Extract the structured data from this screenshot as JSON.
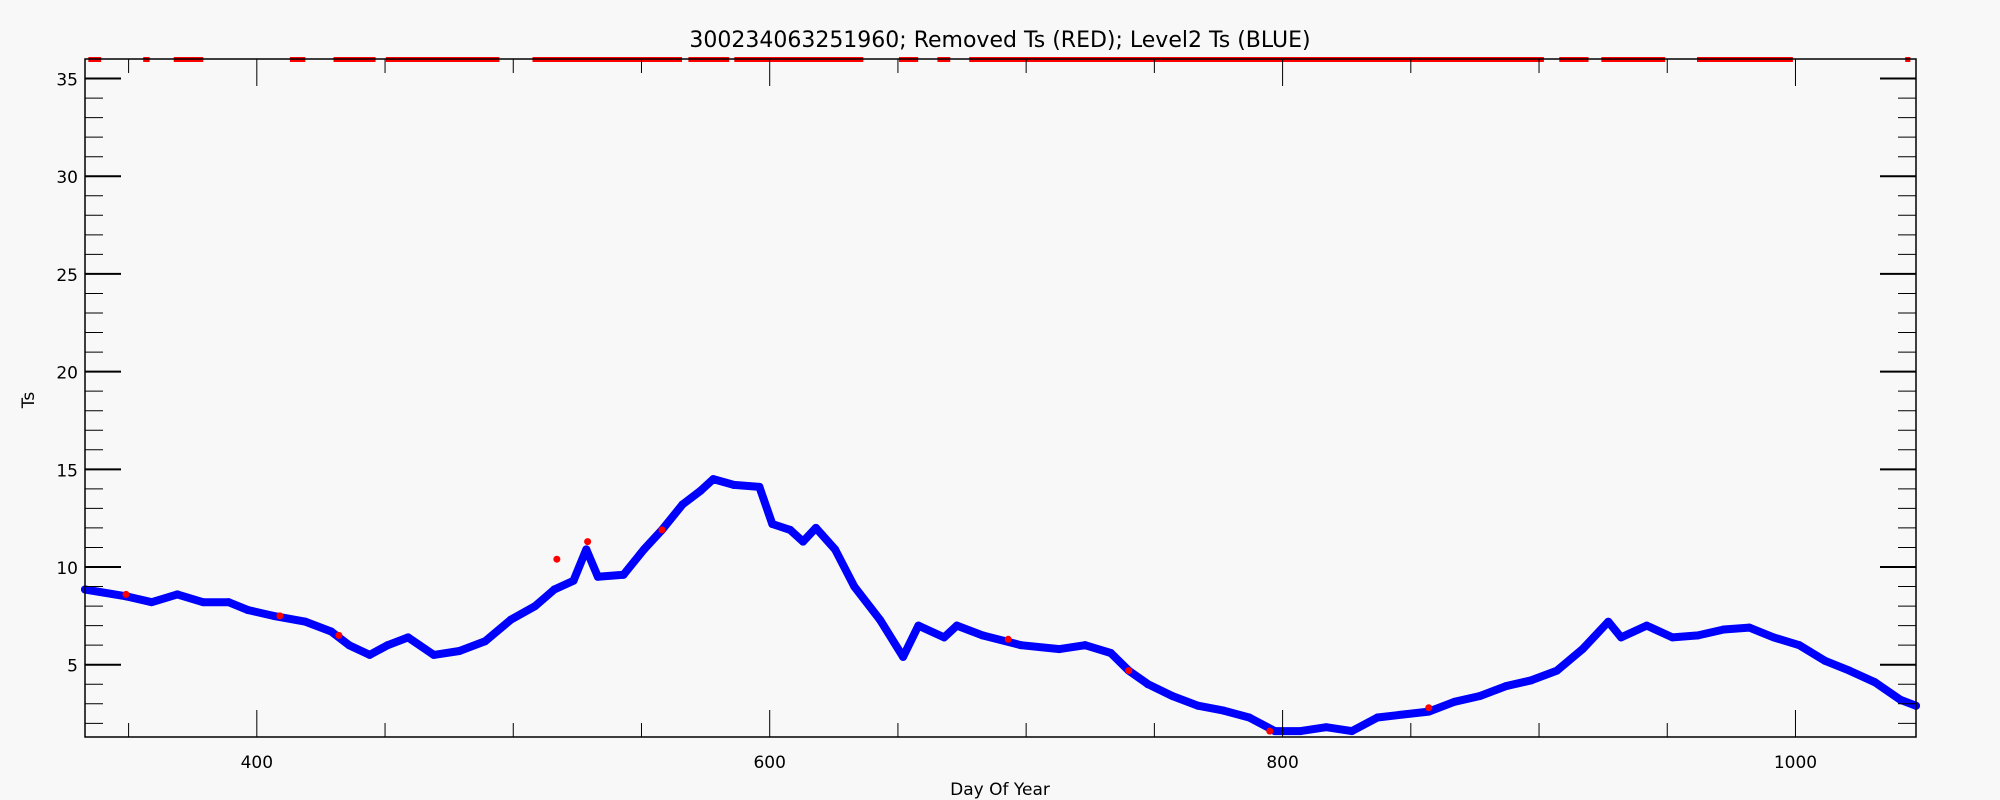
{
  "chart_data": {
    "type": "scatter",
    "title": "300234063251960; Removed Ts (RED); Level2 Ts (BLUE)",
    "xlabel": "Day Of Year",
    "ylabel": "Ts",
    "xlim": [
      333,
      1047
    ],
    "ylim": [
      1.3,
      36
    ],
    "xticks": [
      400,
      600,
      800,
      1000
    ],
    "xtick_labels": [
      "400",
      "600",
      "800",
      "1000"
    ],
    "x_minor_step": 50,
    "yticks": [
      5,
      10,
      15,
      20,
      25,
      30,
      35
    ],
    "ytick_labels": [
      "5",
      "10",
      "15",
      "20",
      "25",
      "30",
      "35"
    ],
    "y_minor_step": 1,
    "grid": false,
    "colors": {
      "level2": "#0000ff",
      "removed": "#ff0000",
      "background": "#f8f8f8"
    },
    "series": [
      {
        "name": "Level2 Ts (BLUE)",
        "color": "#0000ff",
        "x": [
          333,
          349,
          359,
          369,
          379,
          389,
          396.5,
          406.5,
          419,
          429,
          436,
          444,
          451,
          459,
          469,
          479,
          489,
          499,
          508.5,
          516,
          523.5,
          528.5,
          533,
          543,
          551,
          558,
          566,
          573,
          578,
          586,
          596,
          601,
          608,
          613,
          618,
          625.5,
          633,
          643,
          652,
          658,
          668,
          673,
          683,
          698,
          713,
          723,
          733,
          740,
          747.5,
          757,
          767,
          777,
          787,
          797,
          807,
          817,
          827,
          837,
          847,
          857,
          867,
          877,
          887,
          897,
          907,
          917,
          927,
          932,
          942,
          952,
          962,
          972,
          982,
          991.5,
          1001.5,
          1011.5,
          1021,
          1031,
          1041,
          1047
        ],
        "y": [
          8.85,
          8.5,
          8.2,
          8.6,
          8.2,
          8.2,
          7.8,
          7.5,
          7.2,
          6.7,
          6.0,
          5.5,
          6.0,
          6.4,
          5.5,
          5.7,
          6.2,
          7.3,
          8.0,
          8.85,
          9.3,
          10.9,
          9.5,
          9.6,
          10.9,
          11.9,
          13.2,
          13.9,
          14.5,
          14.2,
          14.1,
          12.2,
          11.9,
          11.3,
          12.0,
          10.9,
          9.0,
          7.3,
          5.4,
          7.0,
          6.4,
          7.0,
          6.5,
          6.0,
          5.8,
          6.0,
          5.6,
          4.7,
          4.0,
          3.4,
          2.9,
          2.65,
          2.3,
          1.6,
          1.6,
          1.8,
          1.6,
          2.3,
          2.45,
          2.6,
          3.1,
          3.4,
          3.9,
          4.2,
          4.7,
          5.8,
          7.2,
          6.4,
          7.0,
          6.4,
          6.5,
          6.8,
          6.9,
          6.4,
          6.0,
          5.2,
          4.7,
          4.1,
          3.2,
          2.9
        ]
      },
      {
        "name": "Removed Ts (RED)",
        "color": "#ff0000",
        "x": [
          349,
          409,
          432,
          517,
          529,
          558,
          693,
          740,
          795,
          857
        ],
        "y": [
          8.6,
          7.5,
          6.5,
          10.4,
          11.3,
          11.9,
          6.3,
          4.7,
          1.6,
          2.8
        ],
        "clipped_above_ylim_day_ranges": [
          [
            334.3,
            339.3
          ],
          [
            355.7,
            358.2
          ],
          [
            367.6,
            379.1
          ],
          [
            412.9,
            418.9
          ],
          [
            429.9,
            446.3
          ],
          [
            450.3,
            494.6
          ],
          [
            507.5,
            565.8
          ],
          [
            568.3,
            584.2
          ],
          [
            586.2,
            636.5
          ],
          [
            650.4,
            657.9
          ],
          [
            665.4,
            670.4
          ],
          [
            677.8,
            901.9
          ],
          [
            907.9,
            919.3
          ],
          [
            924.3,
            949.2
          ],
          [
            961.6,
            999
          ],
          [
            1042.8,
            1044.8
          ]
        ]
      }
    ]
  }
}
